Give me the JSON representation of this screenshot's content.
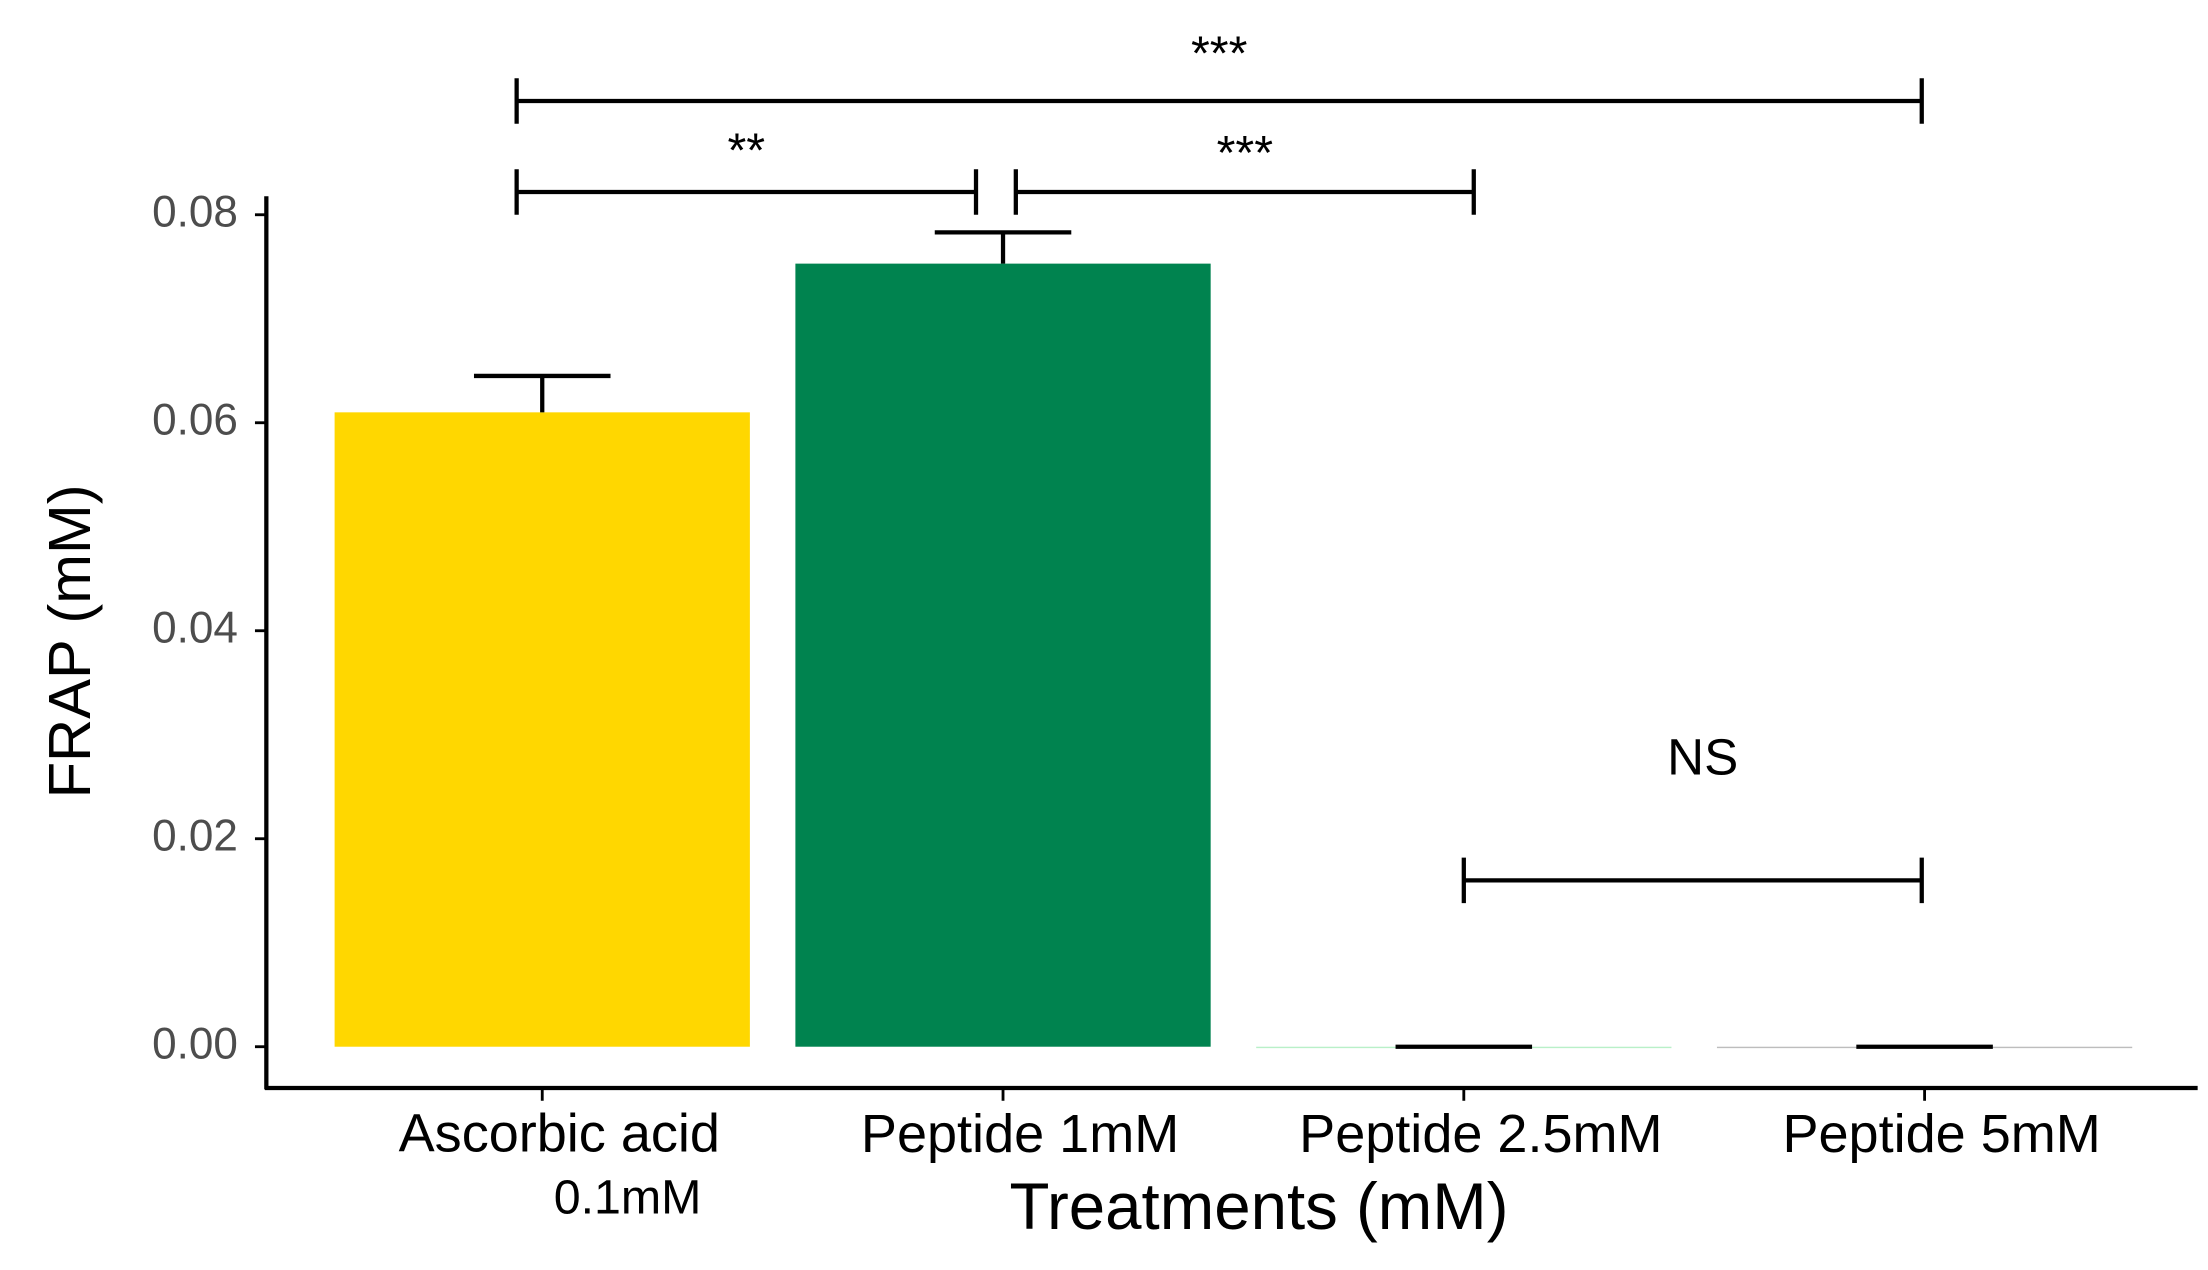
{
  "chart_data": {
    "type": "bar",
    "categories": [
      "Ascorbic acid\n0.1mM",
      "Peptide 1mM",
      "Peptide 2.5mM",
      "Peptide 5mM"
    ],
    "values": [
      0.061,
      0.0753,
      0,
      0
    ],
    "errors": [
      0.0035,
      0.003,
      0,
      0
    ],
    "colors": [
      "#FFD700",
      "#00834F",
      "#B9F0C8",
      "#BDBDBD"
    ],
    "x_label": "Treatments  (mM)",
    "y_label": "FRAP (mM)",
    "ylim": [
      0,
      0.08
    ],
    "yticks": [
      {
        "value": 0,
        "label": "0.00"
      },
      0.02,
      0.04,
      0.06,
      0.08
    ],
    "annotations": [
      "***",
      "**",
      "***",
      "NS"
    ],
    "grid": false
  }
}
